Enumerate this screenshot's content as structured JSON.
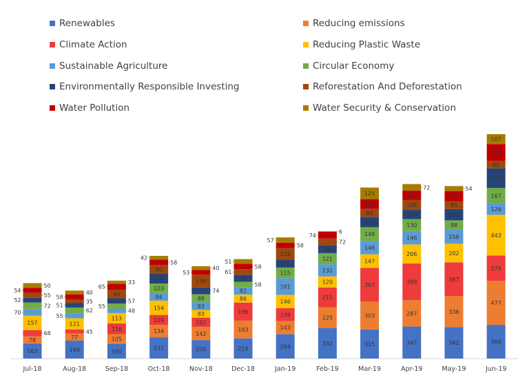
{
  "chart_data": {
    "type": "bar",
    "stacked": true,
    "title": "",
    "xlabel": "",
    "ylabel": "",
    "legend_position": "top",
    "grid": false,
    "data_labels": true,
    "categories": [
      "Jul-18",
      "Aug-18",
      "Sep-18",
      "Oct-18",
      "Nov-18",
      "Dec-18",
      "Jan-19",
      "Feb-19",
      "Mar-19",
      "Apr-19",
      "May-19",
      "Jun-19"
    ],
    "series": [
      {
        "name": "Renewables",
        "color": "#4472C4",
        "values": [
          163,
          194,
          160,
          231,
          200,
          219,
          264,
          332,
          315,
          347,
          342,
          366
        ]
      },
      {
        "name": "Reducing emissions",
        "color": "#ED7D31",
        "values": [
          78,
          77,
          105,
          134,
          142,
          193,
          143,
          225,
          303,
          287,
          336,
          477
        ]
      },
      {
        "name": "Climate Action",
        "color": "#EE3B3B",
        "values": [
          68,
          45,
          116,
          109,
          102,
          196,
          139,
          215,
          367,
          399,
          367,
          275
        ]
      },
      {
        "name": "Reducing Plastic Waste",
        "color": "#FFC000",
        "values": [
          157,
          121,
          113,
          154,
          83,
          86,
          146,
          120,
          147,
          206,
          202,
          443
        ]
      },
      {
        "name": "Sustainable Agriculture",
        "color": "#5B9BD5",
        "values": [
          70,
          55,
          48,
          84,
          83,
          82,
          181,
          132,
          146,
          146,
          156,
          126
        ]
      },
      {
        "name": "Circular Economy",
        "color": "#70AD47",
        "values": [
          72,
          62,
          55,
          103,
          88,
          58,
          115,
          121,
          148,
          130,
          98,
          167
        ]
      },
      {
        "name": "Environmentally Responsible Investing",
        "color": "#264478",
        "values": [
          52,
          51,
          57,
          110,
          74,
          76,
          85,
          86,
          113,
          100,
          123,
          213
        ]
      },
      {
        "name": "Reforestation And Deforestation",
        "color": "#9E480E",
        "values": [
          55,
          35,
          94,
          90,
          138,
          61,
          128,
          72,
          86,
          106,
          85,
          80
        ]
      },
      {
        "name": "Water Pollution",
        "color": "#C00000",
        "values": [
          54,
          58,
          65,
          58,
          53,
          58,
          58,
          74,
          108,
          103,
          111,
          184
        ]
      },
      {
        "name": "Water Security & Conservation",
        "color": "#A67C00",
        "values": [
          50,
          40,
          33,
          42,
          40,
          51,
          57,
          6,
          125,
          72,
          54,
          107
        ]
      }
    ]
  }
}
